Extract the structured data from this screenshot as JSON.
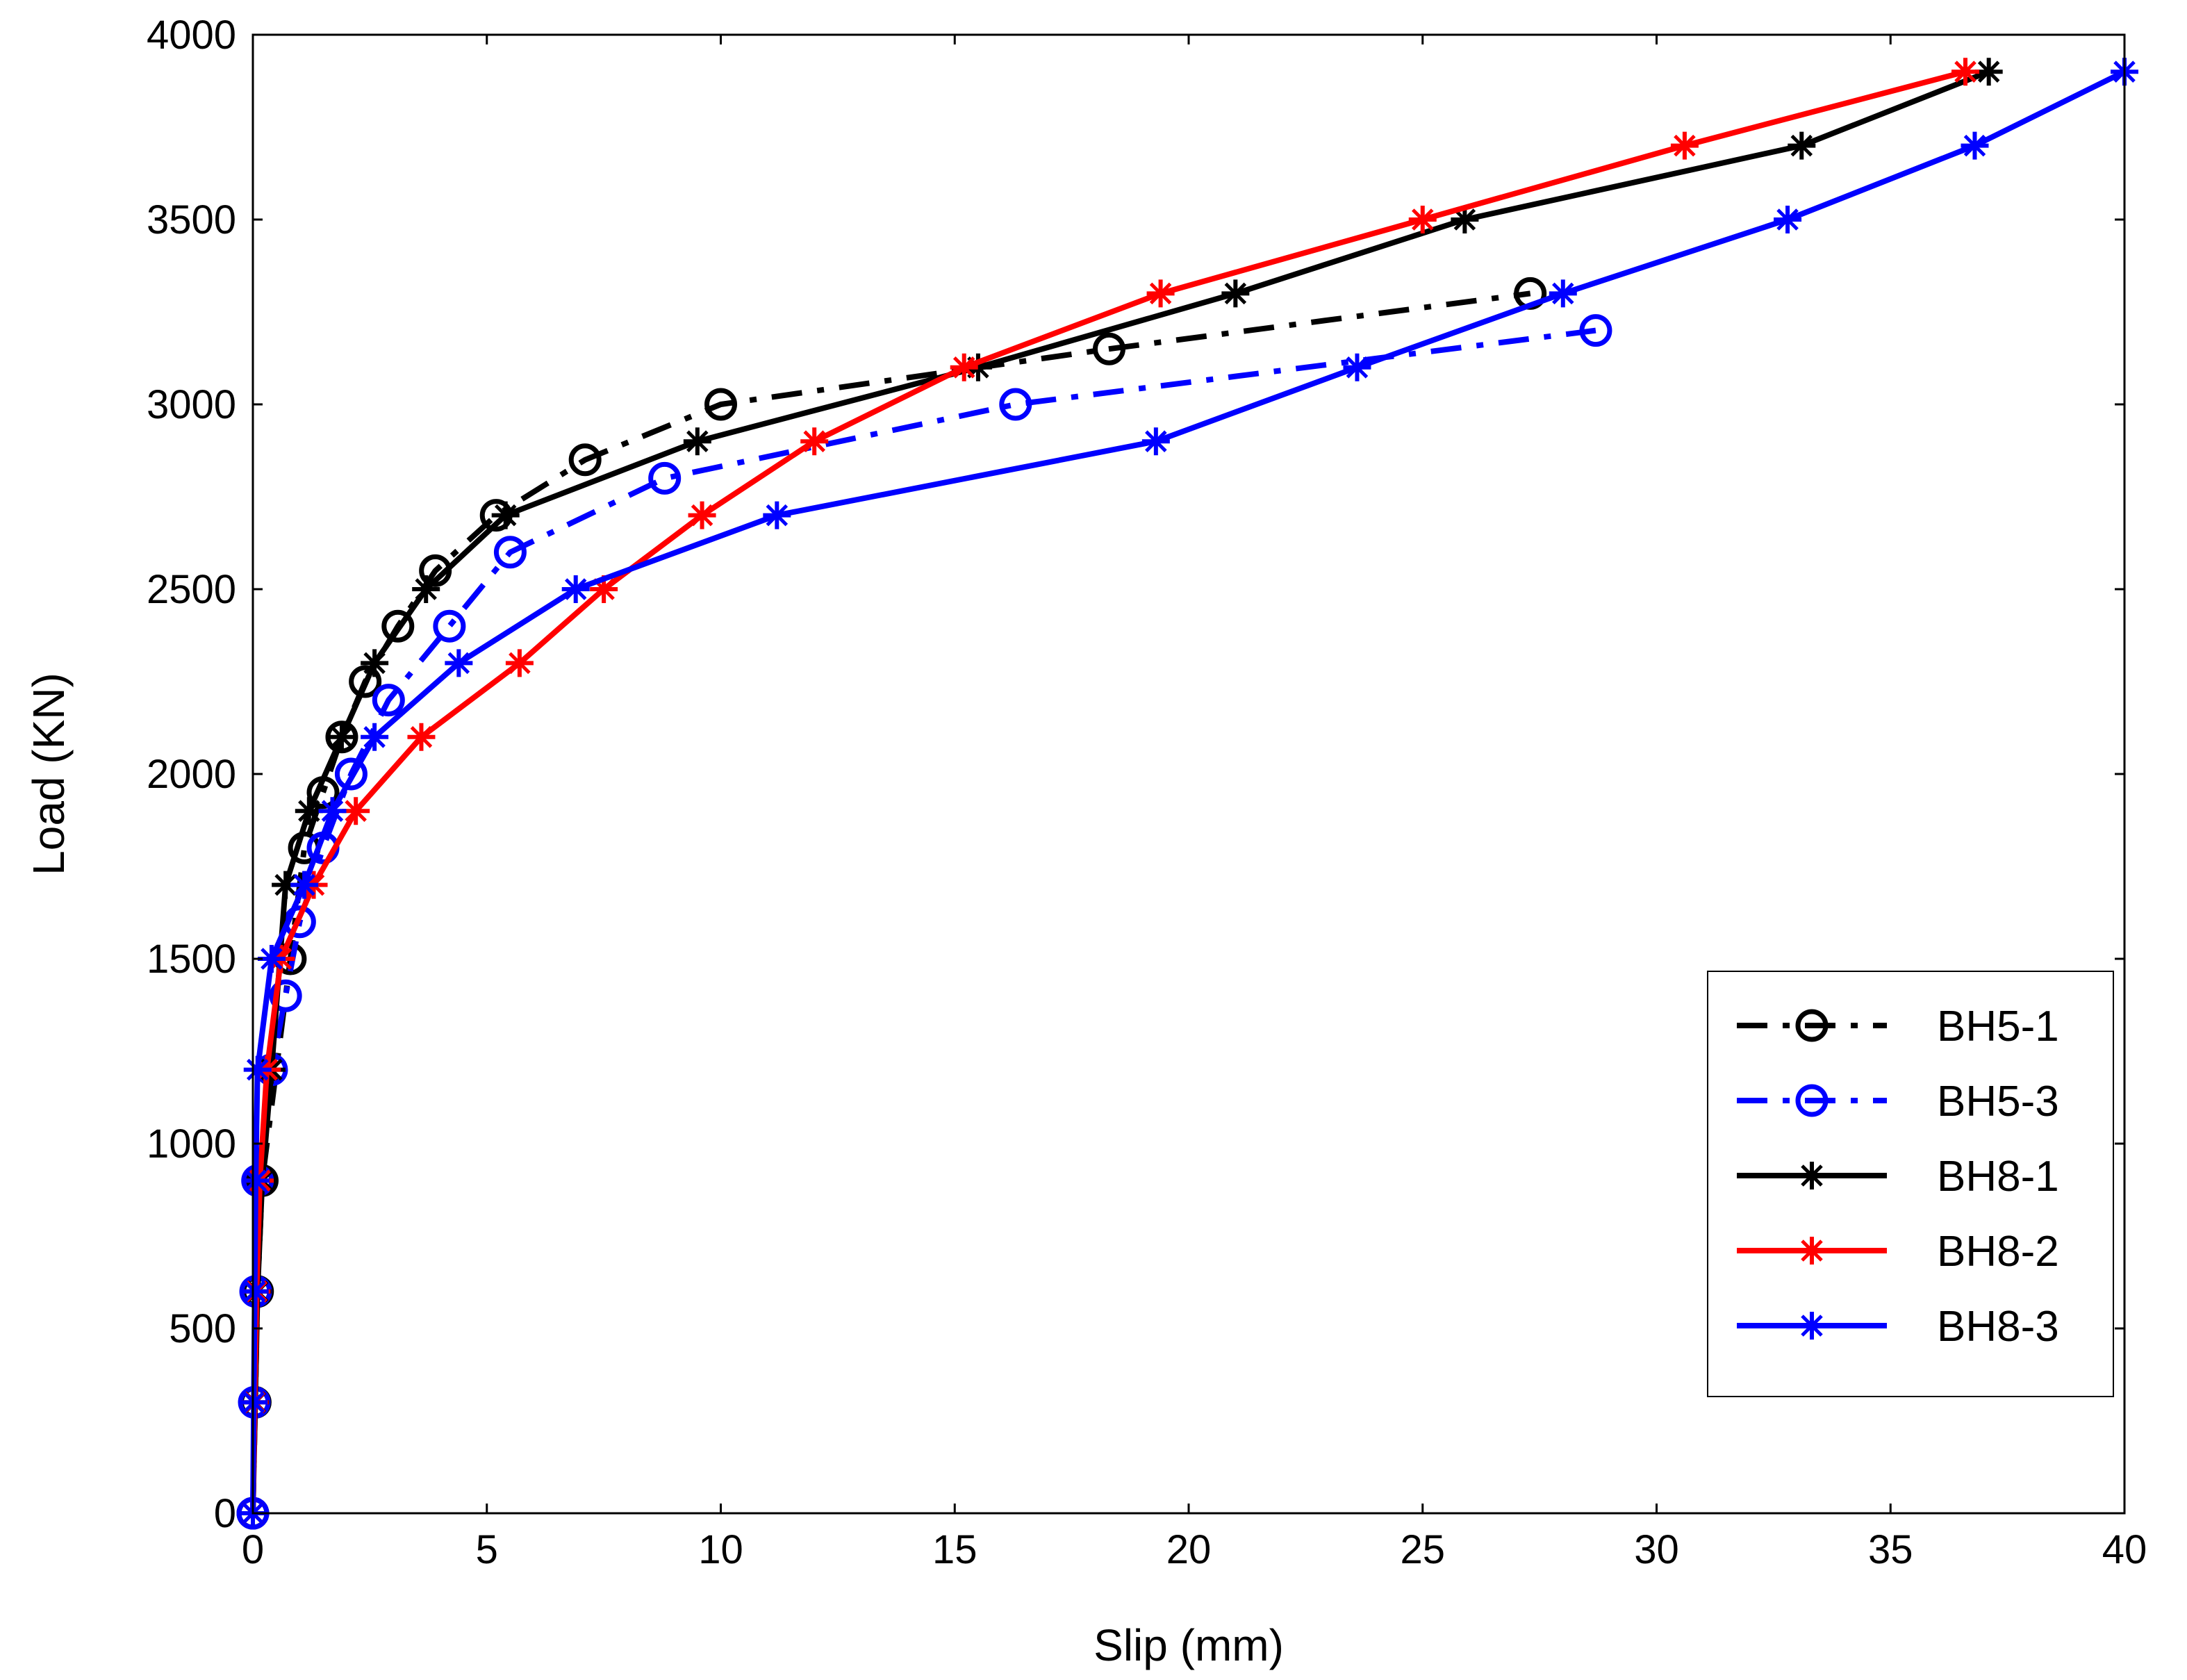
{
  "chart_data": {
    "type": "line",
    "title": "",
    "xlabel": "Slip (mm)",
    "ylabel": "Load (KN)",
    "xlim": [
      0,
      40
    ],
    "ylim": [
      0,
      4000
    ],
    "xticks": [
      0,
      5,
      10,
      15,
      20,
      25,
      30,
      35,
      40
    ],
    "yticks": [
      0,
      500,
      1000,
      1500,
      2000,
      2500,
      3000,
      3500,
      4000
    ],
    "grid": false,
    "legend_position": "lower-right",
    "series": [
      {
        "name": "BH5-1",
        "color": "#000000",
        "line_style": "dash-dot",
        "marker": "circle",
        "points": [
          [
            0,
            0
          ],
          [
            0.05,
            300
          ],
          [
            0.1,
            600
          ],
          [
            0.2,
            900
          ],
          [
            0.8,
            1500
          ],
          [
            1.1,
            1800
          ],
          [
            1.5,
            1950
          ],
          [
            1.9,
            2100
          ],
          [
            2.4,
            2250
          ],
          [
            3.1,
            2400
          ],
          [
            3.9,
            2550
          ],
          [
            5.2,
            2700
          ],
          [
            7.1,
            2850
          ],
          [
            10.0,
            3000
          ],
          [
            18.3,
            3150
          ],
          [
            27.3,
            3300
          ]
        ]
      },
      {
        "name": "BH5-3",
        "color": "#0000ff",
        "line_style": "dash-dot",
        "marker": "circle",
        "points": [
          [
            0,
            0
          ],
          [
            0.03,
            300
          ],
          [
            0.06,
            600
          ],
          [
            0.1,
            900
          ],
          [
            0.4,
            1200
          ],
          [
            0.7,
            1400
          ],
          [
            1.0,
            1600
          ],
          [
            1.5,
            1800
          ],
          [
            2.1,
            2000
          ],
          [
            2.9,
            2200
          ],
          [
            4.2,
            2400
          ],
          [
            5.5,
            2600
          ],
          [
            8.8,
            2800
          ],
          [
            16.3,
            3000
          ],
          [
            28.7,
            3200
          ]
        ]
      },
      {
        "name": "BH8-1",
        "color": "#000000",
        "line_style": "solid",
        "marker": "star",
        "points": [
          [
            0,
            0
          ],
          [
            0.05,
            300
          ],
          [
            0.1,
            600
          ],
          [
            0.2,
            900
          ],
          [
            0.4,
            1200
          ],
          [
            0.7,
            1700
          ],
          [
            1.2,
            1900
          ],
          [
            1.9,
            2100
          ],
          [
            2.6,
            2300
          ],
          [
            3.7,
            2500
          ],
          [
            5.4,
            2700
          ],
          [
            9.5,
            2900
          ],
          [
            15.5,
            3100
          ],
          [
            21.0,
            3300
          ],
          [
            25.9,
            3500
          ],
          [
            33.1,
            3700
          ],
          [
            37.1,
            3900
          ]
        ]
      },
      {
        "name": "BH8-2",
        "color": "#ff0000",
        "line_style": "solid",
        "marker": "star",
        "points": [
          [
            0,
            0
          ],
          [
            0.04,
            300
          ],
          [
            0.08,
            600
          ],
          [
            0.15,
            900
          ],
          [
            0.3,
            1200
          ],
          [
            0.6,
            1500
          ],
          [
            1.3,
            1700
          ],
          [
            2.2,
            1900
          ],
          [
            3.6,
            2100
          ],
          [
            5.7,
            2300
          ],
          [
            7.5,
            2500
          ],
          [
            9.6,
            2700
          ],
          [
            12.0,
            2900
          ],
          [
            15.2,
            3100
          ],
          [
            19.4,
            3300
          ],
          [
            25.0,
            3500
          ],
          [
            30.6,
            3700
          ],
          [
            36.6,
            3900
          ]
        ]
      },
      {
        "name": "BH8-3",
        "color": "#0000ff",
        "line_style": "solid",
        "marker": "star",
        "points": [
          [
            0,
            0
          ],
          [
            0.02,
            300
          ],
          [
            0.04,
            600
          ],
          [
            0.06,
            900
          ],
          [
            0.1,
            1200
          ],
          [
            0.4,
            1500
          ],
          [
            1.1,
            1700
          ],
          [
            1.7,
            1900
          ],
          [
            2.6,
            2100
          ],
          [
            4.4,
            2300
          ],
          [
            6.9,
            2500
          ],
          [
            11.2,
            2700
          ],
          [
            19.3,
            2900
          ],
          [
            23.6,
            3100
          ],
          [
            28.0,
            3300
          ],
          [
            32.8,
            3500
          ],
          [
            36.8,
            3700
          ],
          [
            40.0,
            3900
          ]
        ]
      }
    ]
  }
}
